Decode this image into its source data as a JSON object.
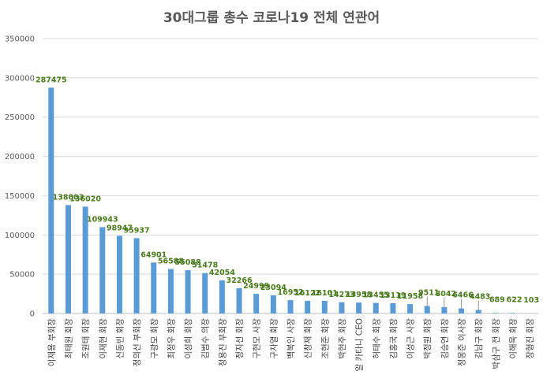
{
  "chart_data": {
    "type": "bar",
    "title": "30대그룹 총수 코로나19 전체 연관어",
    "xlabel": "",
    "ylabel": "",
    "ylim": [
      0,
      350000
    ],
    "yticks": [
      0,
      50000,
      100000,
      150000,
      200000,
      250000,
      300000,
      350000
    ],
    "grid": true,
    "legend": "none",
    "bar_color": "#5b9bd5",
    "label_color": "#4a7a1e",
    "categories": [
      "이재용 부회장",
      "최태원 회장",
      "조원태 회장",
      "이재현 회장",
      "신동빈 회장",
      "정의선 부회장",
      "구광모 회장",
      "최정우 회장",
      "이성희 회장",
      "김범수 의장",
      "정용진 부회장",
      "정지선 회장",
      "구현모 사장",
      "구자열 회장",
      "백복인 사장",
      "신창재 회장",
      "조현준 회장",
      "박현주 회장",
      "알 카타니 CEO",
      "허태수 회장",
      "김홍국 회장",
      "이성근 사장",
      "박정원 회장",
      "김승연 회장",
      "정몽준 이사장",
      "김남구 회장",
      "박삼구 전 회장",
      "이해욱 회장",
      "장형진 회장"
    ],
    "values": [
      287475,
      138003,
      136020,
      109943,
      98947,
      95937,
      64901,
      56588,
      55088,
      51478,
      42054,
      32266,
      24999,
      23094,
      16952,
      16122,
      16101,
      14273,
      13958,
      13455,
      13119,
      11958,
      9511,
      8042,
      6466,
      4483,
      689,
      622,
      103
    ]
  }
}
